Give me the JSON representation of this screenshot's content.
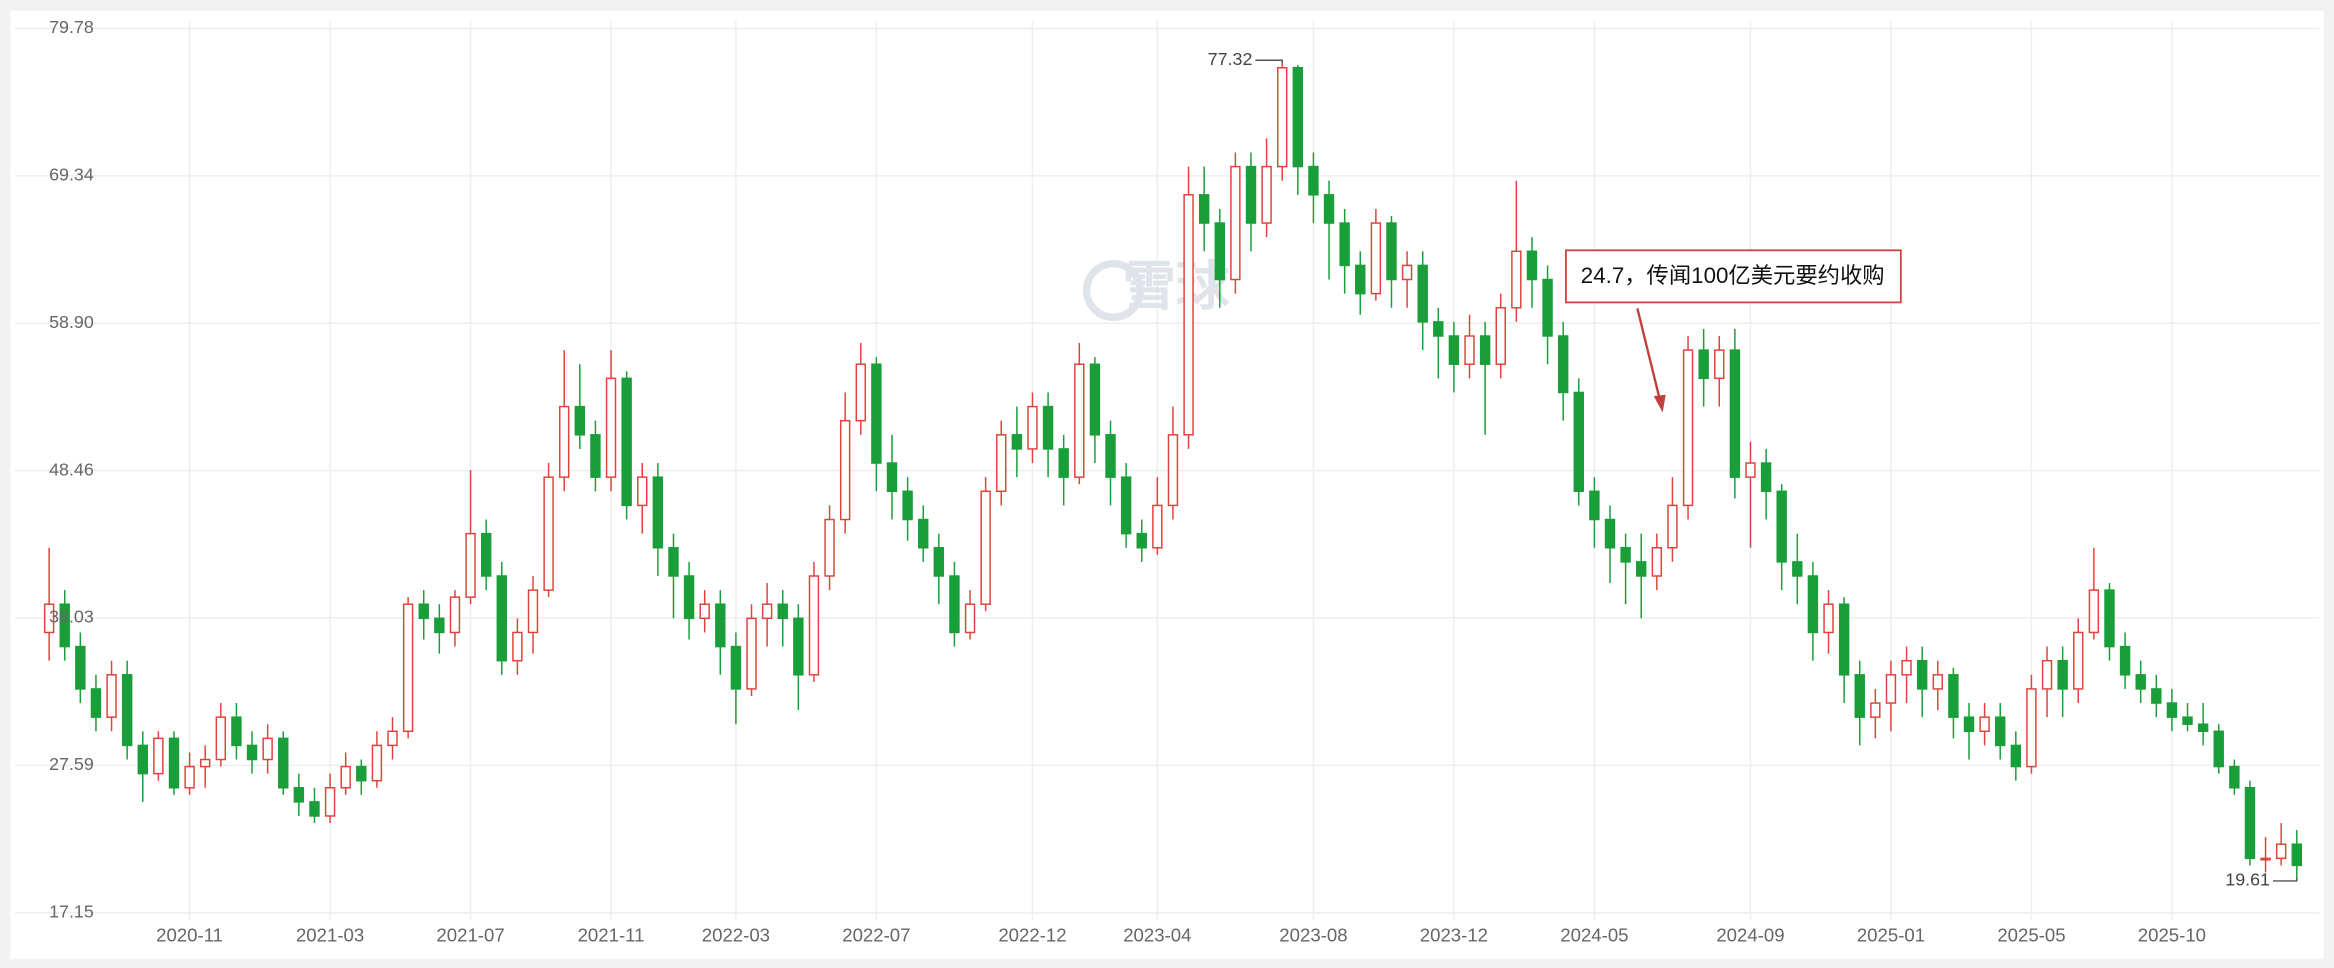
{
  "chart_data": {
    "type": "candlestick",
    "annotation": "24.7，传闻100亿美元要约收购",
    "watermark": "雪球",
    "up_color": "#e0433c",
    "down_color": "#1a9e3a",
    "ylim": [
      17.15,
      79.78
    ],
    "yticks": [
      17.15,
      27.59,
      38.03,
      48.46,
      {
        "value": 58.9,
        "label": "58.90"
      },
      69.34,
      79.78
    ],
    "grid": true,
    "categories": [
      null,
      null,
      null,
      null,
      null,
      null,
      null,
      null,
      null,
      "2020-11",
      null,
      null,
      null,
      null,
      null,
      null,
      null,
      null,
      "2021-03",
      null,
      null,
      null,
      null,
      null,
      null,
      null,
      null,
      "2021-07",
      null,
      null,
      null,
      null,
      null,
      null,
      null,
      null,
      "2021-11",
      null,
      null,
      null,
      null,
      null,
      null,
      null,
      "2022-03",
      null,
      null,
      null,
      null,
      null,
      null,
      null,
      null,
      "2022-07",
      null,
      null,
      null,
      null,
      null,
      null,
      null,
      null,
      null,
      "2022-12",
      null,
      null,
      null,
      null,
      null,
      null,
      null,
      "2023-04",
      null,
      null,
      null,
      null,
      null,
      null,
      null,
      null,
      null,
      "2023-08",
      null,
      null,
      null,
      null,
      null,
      null,
      null,
      null,
      "2023-12",
      null,
      null,
      null,
      null,
      null,
      null,
      null,
      null,
      "2024-05",
      null,
      null,
      null,
      null,
      null,
      null,
      null,
      null,
      null,
      "2024-09",
      null,
      null,
      null,
      null,
      null,
      null,
      null,
      null,
      "2025-01",
      null,
      null,
      null,
      null,
      null,
      null,
      null,
      null,
      "2025-05",
      null,
      null,
      null,
      null,
      null,
      null,
      null,
      null,
      "2025-10",
      null,
      null,
      null,
      null,
      null,
      null,
      null,
      null
    ],
    "candles": [
      [
        37,
        43,
        35,
        39
      ],
      [
        39,
        40,
        35,
        36
      ],
      [
        36,
        37,
        32,
        33
      ],
      [
        33,
        34,
        30,
        31
      ],
      [
        31,
        35,
        30,
        34
      ],
      [
        34,
        35,
        28,
        29
      ],
      [
        29,
        30,
        25,
        27
      ],
      [
        27,
        30,
        26.5,
        29.5
      ],
      [
        29.5,
        30,
        25.5,
        26
      ],
      [
        26,
        28.5,
        25.5,
        27.5
      ],
      [
        27.5,
        29,
        26,
        28
      ],
      [
        28,
        32,
        27.5,
        31
      ],
      [
        31,
        32,
        28,
        29
      ],
      [
        29,
        30,
        27,
        28
      ],
      [
        28,
        30.5,
        27,
        29.5
      ],
      [
        29.5,
        30,
        25.5,
        26
      ],
      [
        26,
        27,
        24,
        25
      ],
      [
        25,
        26,
        23.5,
        24
      ],
      [
        24,
        27,
        23.5,
        26
      ],
      [
        26,
        28.5,
        25.5,
        27.5
      ],
      [
        27.5,
        28,
        25.5,
        26.5
      ],
      [
        26.5,
        30,
        26,
        29
      ],
      [
        29,
        31,
        28,
        30
      ],
      [
        30,
        39.5,
        29.5,
        39
      ],
      [
        39,
        40,
        36.5,
        38
      ],
      [
        38,
        39,
        35.5,
        37
      ],
      [
        37,
        40,
        36,
        39.5
      ],
      [
        39.5,
        48.5,
        39,
        44
      ],
      [
        44,
        45,
        40,
        41
      ],
      [
        41,
        42,
        34,
        35
      ],
      [
        35,
        38,
        34,
        37
      ],
      [
        37,
        41,
        35.5,
        40
      ],
      [
        40,
        49,
        39.5,
        48
      ],
      [
        48,
        57,
        47,
        53
      ],
      [
        53,
        56,
        50,
        51
      ],
      [
        51,
        52,
        47,
        48
      ],
      [
        48,
        57,
        47,
        55
      ],
      [
        55,
        55.5,
        45,
        46
      ],
      [
        46,
        49,
        44,
        48
      ],
      [
        48,
        49,
        41,
        43
      ],
      [
        43,
        44,
        38,
        41
      ],
      [
        41,
        42,
        36.5,
        38
      ],
      [
        38,
        40,
        37,
        39
      ],
      [
        39,
        40,
        34,
        36
      ],
      [
        36,
        37,
        30.5,
        33
      ],
      [
        33,
        39,
        32.5,
        38
      ],
      [
        38,
        40.5,
        36,
        39
      ],
      [
        39,
        40,
        36,
        38
      ],
      [
        38,
        39,
        31.5,
        34
      ],
      [
        34,
        42,
        33.5,
        41
      ],
      [
        41,
        46,
        40,
        45
      ],
      [
        45,
        54,
        44,
        52
      ],
      [
        52,
        57.5,
        51,
        56
      ],
      [
        56,
        56.5,
        47,
        49
      ],
      [
        49,
        51,
        45,
        47
      ],
      [
        47,
        48,
        43.5,
        45
      ],
      [
        45,
        46,
        42,
        43
      ],
      [
        43,
        44,
        39,
        41
      ],
      [
        41,
        42,
        36,
        37
      ],
      [
        37,
        40,
        36.5,
        39
      ],
      [
        39,
        48,
        38.5,
        47
      ],
      [
        47,
        52,
        46,
        51
      ],
      [
        51,
        53,
        48,
        50
      ],
      [
        50,
        54,
        49,
        53
      ],
      [
        53,
        54,
        48,
        50
      ],
      [
        50,
        51,
        46,
        48
      ],
      [
        48,
        57.5,
        47.5,
        56
      ],
      [
        56,
        56.5,
        49,
        51
      ],
      [
        51,
        52,
        46,
        48
      ],
      [
        48,
        49,
        43,
        44
      ],
      [
        44,
        45,
        42,
        43
      ],
      [
        43,
        48,
        42.5,
        46
      ],
      [
        46,
        53,
        45,
        51
      ],
      [
        51,
        70,
        50,
        68
      ],
      [
        68,
        70,
        64,
        66
      ],
      [
        66,
        67,
        60,
        62
      ],
      [
        62,
        71,
        61,
        70
      ],
      [
        70,
        71,
        64,
        66
      ],
      [
        66,
        72,
        65,
        70
      ],
      [
        70,
        77.32,
        69,
        77
      ],
      [
        77,
        77.2,
        68,
        70
      ],
      [
        70,
        71,
        66,
        68
      ],
      [
        68,
        69,
        62,
        66
      ],
      [
        66,
        67,
        61,
        63
      ],
      [
        63,
        64,
        59.5,
        61
      ],
      [
        61,
        67,
        60.5,
        66
      ],
      [
        66,
        66.5,
        60,
        62
      ],
      [
        62,
        64,
        60,
        63
      ],
      [
        63,
        64,
        57,
        59
      ],
      [
        59,
        60,
        55,
        58
      ],
      [
        58,
        59,
        54,
        56
      ],
      [
        56,
        59.5,
        55,
        58
      ],
      [
        58,
        59,
        51,
        56
      ],
      [
        56,
        61,
        55,
        60
      ],
      [
        60,
        69,
        59,
        64
      ],
      [
        64,
        65,
        60,
        62
      ],
      [
        62,
        63,
        56,
        58
      ],
      [
        58,
        59,
        52,
        54
      ],
      [
        54,
        55,
        46,
        47
      ],
      [
        47,
        48,
        43,
        45
      ],
      [
        45,
        46,
        40.5,
        43
      ],
      [
        43,
        44,
        39,
        42
      ],
      [
        42,
        44,
        38,
        41
      ],
      [
        41,
        44,
        40,
        43
      ],
      [
        43,
        48,
        42,
        46
      ],
      [
        46,
        58,
        45,
        57
      ],
      [
        57,
        58.5,
        53,
        55
      ],
      [
        55,
        58,
        53,
        57
      ],
      [
        57,
        58.5,
        46.5,
        48
      ],
      [
        48,
        50.5,
        43,
        49
      ],
      [
        49,
        50,
        45,
        47
      ],
      [
        47,
        47.5,
        40,
        42
      ],
      [
        42,
        44,
        39,
        41
      ],
      [
        41,
        42,
        35,
        37
      ],
      [
        37,
        40,
        35.5,
        39
      ],
      [
        39,
        39.5,
        32,
        34
      ],
      [
        34,
        35,
        29,
        31
      ],
      [
        31,
        33,
        29.5,
        32
      ],
      [
        32,
        35,
        30,
        34
      ],
      [
        34,
        36,
        32,
        35
      ],
      [
        35,
        36,
        31,
        33
      ],
      [
        33,
        35,
        31.5,
        34
      ],
      [
        34,
        34.5,
        29.5,
        31
      ],
      [
        31,
        32,
        28,
        30
      ],
      [
        30,
        32,
        29,
        31
      ],
      [
        31,
        32,
        28,
        29
      ],
      [
        29,
        30,
        26.5,
        27.5
      ],
      [
        27.5,
        34,
        27,
        33
      ],
      [
        33,
        36,
        31,
        35
      ],
      [
        35,
        36,
        31,
        33
      ],
      [
        33,
        38,
        32,
        37
      ],
      [
        37,
        43,
        36.5,
        40
      ],
      [
        40,
        40.5,
        35,
        36
      ],
      [
        36,
        37,
        33,
        34
      ],
      [
        34,
        35,
        32,
        33
      ],
      [
        33,
        34,
        31,
        32
      ],
      [
        32,
        33,
        30,
        31
      ],
      [
        31,
        32,
        30,
        30.5
      ],
      [
        30.5,
        32,
        29,
        30
      ],
      [
        30,
        30.5,
        27,
        27.5
      ],
      [
        27.5,
        28,
        25.5,
        26
      ],
      [
        26,
        26.5,
        20.5,
        21
      ],
      [
        21,
        22.5,
        20,
        21
      ],
      [
        21,
        23.5,
        20.5,
        22
      ],
      [
        22,
        23,
        19.61,
        20.5
      ]
    ]
  }
}
